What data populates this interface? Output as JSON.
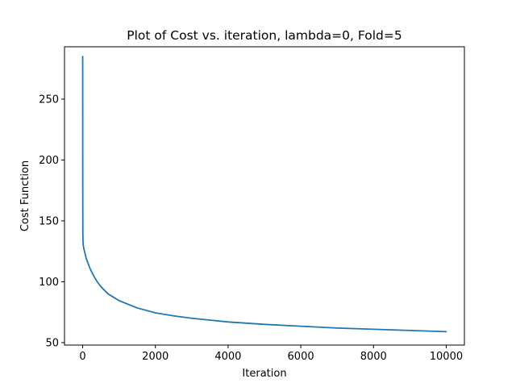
{
  "chart_data": {
    "type": "line",
    "title": "Plot of Cost vs. iteration, lambda=0, Fold=5",
    "xlabel": "Iteration",
    "ylabel": "Cost Function",
    "xlim": [
      -500,
      10500
    ],
    "ylim": [
      48,
      293
    ],
    "x_ticks": [
      0,
      2000,
      4000,
      6000,
      8000,
      10000
    ],
    "x_tick_labels": [
      "0",
      "2000",
      "4000",
      "6000",
      "8000",
      "10000"
    ],
    "y_ticks": [
      50,
      100,
      150,
      200,
      250
    ],
    "y_tick_labels": [
      "50",
      "100",
      "150",
      "200",
      "250"
    ],
    "grid": false,
    "legend": "none",
    "series": [
      {
        "color": "#1f77b4",
        "x": [
          0,
          1,
          2,
          5,
          10,
          20,
          30,
          50,
          100,
          200,
          300,
          400,
          500,
          700,
          1000,
          1500,
          2000,
          2500,
          3000,
          4000,
          5000,
          6000,
          7000,
          8000,
          9000,
          10000
        ],
        "values": [
          285,
          240,
          180,
          140,
          132,
          129,
          127.5,
          125,
          119,
          111,
          105,
          100,
          96,
          90,
          84.5,
          78.5,
          74.5,
          72,
          70,
          67,
          65,
          63.5,
          62,
          61,
          60,
          59
        ]
      }
    ]
  }
}
